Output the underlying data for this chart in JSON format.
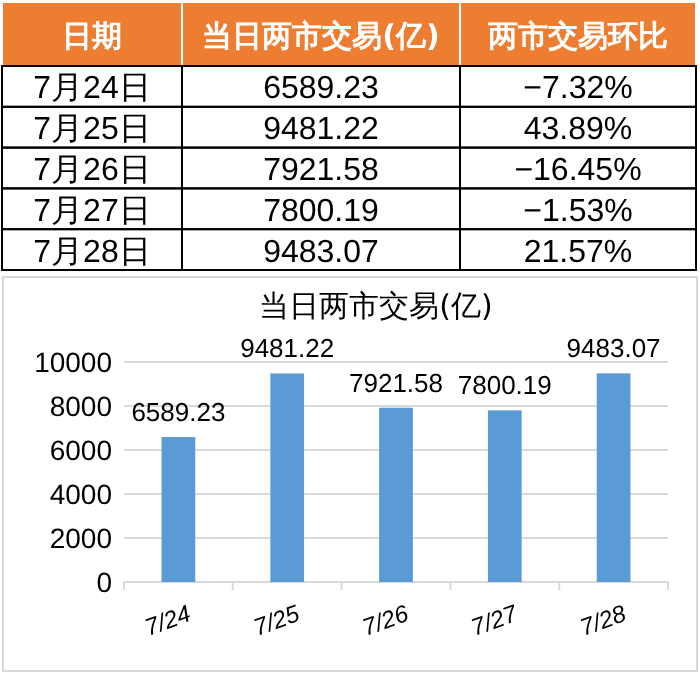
{
  "chart_data": [
    {
      "type": "other",
      "annotations": [
        "日期",
        "当日两市交易(亿)",
        "两市交易环比",
        "7月24日",
        "6589.23",
        "−7.32%",
        "7月25日",
        "9481.22",
        "43.89%",
        "7月26日",
        "7921.58",
        "−16.45%",
        "7月27日",
        "7800.19",
        "−1.53%",
        "7月28日",
        "9483.07",
        "21.57%"
      ]
    },
    {
      "type": "bar",
      "title": "当日两市交易(亿)",
      "categories": [
        "7/24",
        "7/25",
        "7/26",
        "7/27",
        "7/28"
      ],
      "values": [
        6589.23,
        9481.22,
        7921.58,
        7800.19,
        9483.07
      ],
      "color": "#5b9bd5",
      "ylim": [
        0,
        10000
      ],
      "yticks": [
        0,
        2000,
        4000,
        6000,
        8000,
        10000
      ],
      "grid": "y",
      "data_labels": true
    }
  ]
}
